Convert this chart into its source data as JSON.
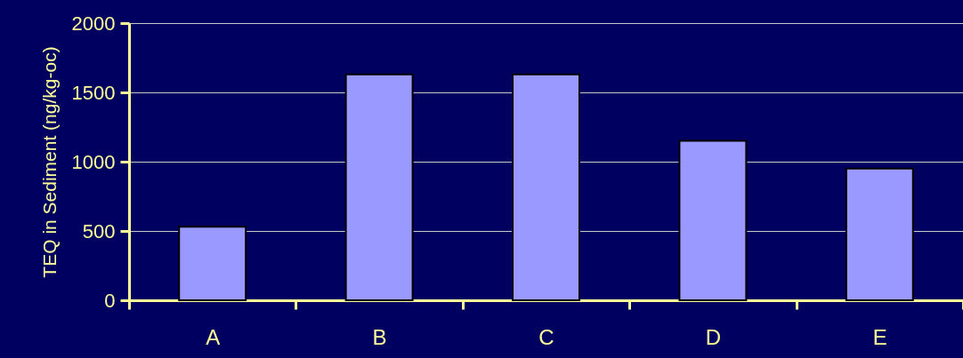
{
  "chart_data": {
    "type": "bar",
    "ylabel": "TEQ in Sediment (ng/kg-oc)",
    "categories": [
      "A",
      "B",
      "C",
      "D",
      "E"
    ],
    "values": [
      530,
      1630,
      1630,
      1150,
      950
    ],
    "color": "#9999ff",
    "ylim": [
      0,
      2000
    ],
    "yticks": [
      0,
      500,
      1000,
      1500,
      2000
    ],
    "grid": "y"
  }
}
